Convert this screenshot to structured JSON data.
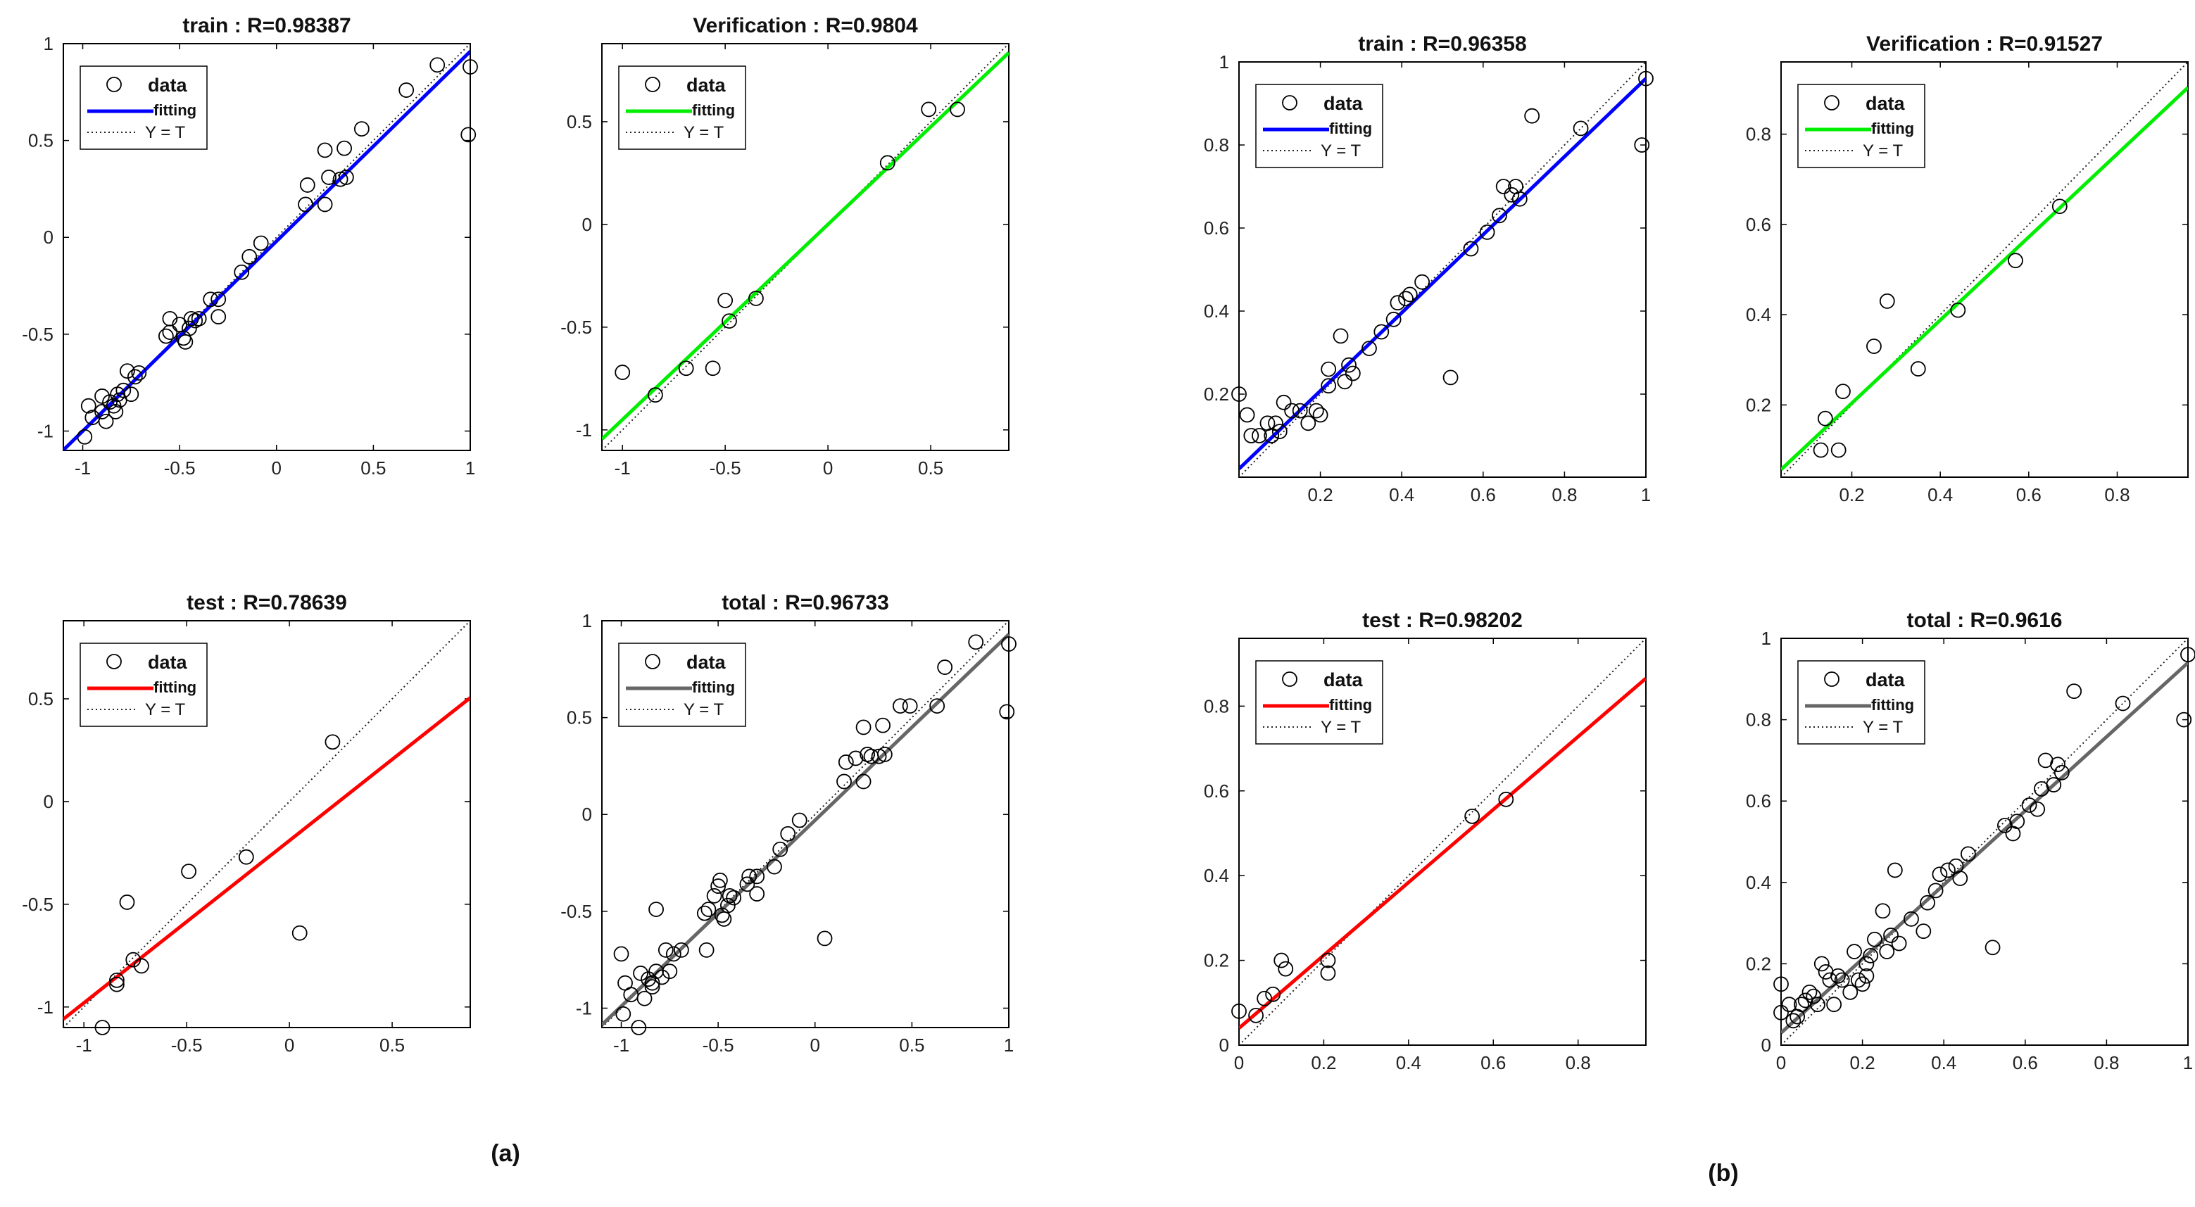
{
  "groups": [
    "(a)",
    "(b)"
  ],
  "legend": {
    "data": "data",
    "fitting": "fitting",
    "identity": "Y = T"
  },
  "colors": {
    "train": "#0000ff",
    "verification": "#00ee00",
    "test": "#ff0000",
    "total": "#666666",
    "axis": "#000000",
    "marker": "#000000"
  },
  "chart_data": [
    {
      "id": "a-train",
      "group": "(a)",
      "type": "scatter",
      "title": "train",
      "r_label": ": R=0.98387",
      "xlim": [
        -1.1,
        1.0
      ],
      "ylim": [
        -1.1,
        1.0
      ],
      "xticks": [
        -1,
        -0.5,
        0,
        0.5,
        1
      ],
      "xtick_labels": [
        "-1",
        "-0.5",
        "0",
        "0.5",
        "1"
      ],
      "yticks": [
        -1,
        -0.5,
        0,
        0.5,
        1
      ],
      "ytick_labels": [
        "-1",
        "-0.5",
        "0",
        "0.5",
        "1"
      ],
      "fit": {
        "slope": 0.98,
        "intercept": -0.02
      },
      "points": [
        [
          -0.99,
          -1.03
        ],
        [
          -0.97,
          -0.87
        ],
        [
          -0.95,
          -0.93
        ],
        [
          -0.9,
          -0.82
        ],
        [
          -0.9,
          -0.9
        ],
        [
          -0.88,
          -0.95
        ],
        [
          -0.86,
          -0.85
        ],
        [
          -0.84,
          -0.87
        ],
        [
          -0.83,
          -0.9
        ],
        [
          -0.82,
          -0.81
        ],
        [
          -0.81,
          -0.84
        ],
        [
          -0.79,
          -0.79
        ],
        [
          -0.77,
          -0.69
        ],
        [
          -0.75,
          -0.81
        ],
        [
          -0.73,
          -0.72
        ],
        [
          -0.71,
          -0.7
        ],
        [
          -0.57,
          -0.51
        ],
        [
          -0.55,
          -0.49
        ],
        [
          -0.55,
          -0.42
        ],
        [
          -0.5,
          -0.45
        ],
        [
          -0.48,
          -0.52
        ],
        [
          -0.47,
          -0.54
        ],
        [
          -0.45,
          -0.47
        ],
        [
          -0.44,
          -0.42
        ],
        [
          -0.42,
          -0.43
        ],
        [
          -0.4,
          -0.42
        ],
        [
          -0.34,
          -0.32
        ],
        [
          -0.3,
          -0.41
        ],
        [
          -0.3,
          -0.32
        ],
        [
          -0.18,
          -0.18
        ],
        [
          -0.14,
          -0.1
        ],
        [
          -0.08,
          -0.03
        ],
        [
          0.15,
          0.17
        ],
        [
          0.16,
          0.27
        ],
        [
          0.25,
          0.17
        ],
        [
          0.25,
          0.45
        ],
        [
          0.27,
          0.31
        ],
        [
          0.33,
          0.3
        ],
        [
          0.35,
          0.46
        ],
        [
          0.36,
          0.31
        ],
        [
          0.44,
          0.56
        ],
        [
          0.67,
          0.76
        ],
        [
          0.83,
          0.89
        ],
        [
          0.99,
          0.53
        ],
        [
          1.0,
          0.88
        ]
      ]
    },
    {
      "id": "a-verification",
      "group": "(a)",
      "type": "scatter",
      "title": "Verification",
      "r_label": ": R=0.9804",
      "xlim": [
        -1.1,
        0.88
      ],
      "ylim": [
        -1.1,
        0.88
      ],
      "xticks": [
        -1,
        -0.5,
        0,
        0.5
      ],
      "xtick_labels": [
        "-1",
        "-0.5",
        "0",
        "0.5"
      ],
      "yticks": [
        -1,
        -0.5,
        0,
        0.5
      ],
      "ytick_labels": [
        "-1",
        "-0.5",
        "0",
        "0.5"
      ],
      "fit": {
        "slope": 0.95,
        "intercept": -0.0
      },
      "points": [
        [
          -1.0,
          -0.72
        ],
        [
          -0.84,
          -0.83
        ],
        [
          -0.69,
          -0.7
        ],
        [
          -0.56,
          -0.7
        ],
        [
          -0.5,
          -0.37
        ],
        [
          -0.48,
          -0.47
        ],
        [
          -0.35,
          -0.36
        ],
        [
          0.29,
          0.3
        ],
        [
          0.49,
          0.56
        ],
        [
          0.63,
          0.56
        ]
      ]
    },
    {
      "id": "a-test",
      "group": "(a)",
      "type": "scatter",
      "title": "test",
      "r_label": ": R=0.78639",
      "xlim": [
        -1.1,
        0.88
      ],
      "ylim": [
        -1.1,
        0.88
      ],
      "xticks": [
        -1,
        -0.5,
        0,
        0.5
      ],
      "xtick_labels": [
        "-1",
        "-0.5",
        "0",
        "0.5"
      ],
      "yticks": [
        -1,
        -0.5,
        0,
        0.5
      ],
      "ytick_labels": [
        "-1",
        "-0.5",
        "0",
        "0.5"
      ],
      "fit": {
        "slope": 0.79,
        "intercept": -0.19
      },
      "points": [
        [
          -0.91,
          -1.1
        ],
        [
          -0.84,
          -0.87
        ],
        [
          -0.84,
          -0.89
        ],
        [
          -0.79,
          -0.49
        ],
        [
          -0.76,
          -0.77
        ],
        [
          -0.72,
          -0.8
        ],
        [
          -0.49,
          -0.34
        ],
        [
          -0.21,
          -0.27
        ],
        [
          0.05,
          -0.64
        ],
        [
          0.21,
          0.29
        ]
      ]
    },
    {
      "id": "a-total",
      "group": "(a)",
      "type": "scatter",
      "title": "total",
      "r_label": ": R=0.96733",
      "xlim": [
        -1.1,
        1.0
      ],
      "ylim": [
        -1.1,
        1.0
      ],
      "xticks": [
        -1,
        -0.5,
        0,
        0.5,
        1
      ],
      "xtick_labels": [
        "-1",
        "-0.5",
        "0",
        "0.5",
        "1"
      ],
      "yticks": [
        -1,
        -0.5,
        0,
        0.5,
        1
      ],
      "ytick_labels": [
        "-1",
        "-0.5",
        "0",
        "0.5",
        "1"
      ],
      "fit": {
        "slope": 0.96,
        "intercept": -0.03
      },
      "points": [
        [
          -1.0,
          -0.72
        ],
        [
          -0.99,
          -1.03
        ],
        [
          -0.98,
          -0.87
        ],
        [
          -0.95,
          -0.93
        ],
        [
          -0.91,
          -1.1
        ],
        [
          -0.9,
          -0.82
        ],
        [
          -0.88,
          -0.95
        ],
        [
          -0.86,
          -0.85
        ],
        [
          -0.84,
          -0.87
        ],
        [
          -0.84,
          -0.89
        ],
        [
          -0.82,
          -0.81
        ],
        [
          -0.82,
          -0.49
        ],
        [
          -0.79,
          -0.84
        ],
        [
          -0.77,
          -0.7
        ],
        [
          -0.75,
          -0.81
        ],
        [
          -0.73,
          -0.72
        ],
        [
          -0.69,
          -0.7
        ],
        [
          -0.57,
          -0.51
        ],
        [
          -0.56,
          -0.7
        ],
        [
          -0.55,
          -0.49
        ],
        [
          -0.52,
          -0.42
        ],
        [
          -0.5,
          -0.37
        ],
        [
          -0.49,
          -0.34
        ],
        [
          -0.48,
          -0.52
        ],
        [
          -0.47,
          -0.54
        ],
        [
          -0.45,
          -0.47
        ],
        [
          -0.44,
          -0.42
        ],
        [
          -0.42,
          -0.43
        ],
        [
          -0.35,
          -0.36
        ],
        [
          -0.34,
          -0.32
        ],
        [
          -0.3,
          -0.41
        ],
        [
          -0.3,
          -0.32
        ],
        [
          -0.21,
          -0.27
        ],
        [
          -0.18,
          -0.18
        ],
        [
          -0.14,
          -0.1
        ],
        [
          -0.08,
          -0.03
        ],
        [
          0.05,
          -0.64
        ],
        [
          0.15,
          0.17
        ],
        [
          0.16,
          0.27
        ],
        [
          0.21,
          0.29
        ],
        [
          0.25,
          0.17
        ],
        [
          0.25,
          0.45
        ],
        [
          0.27,
          0.31
        ],
        [
          0.29,
          0.3
        ],
        [
          0.33,
          0.3
        ],
        [
          0.35,
          0.46
        ],
        [
          0.36,
          0.31
        ],
        [
          0.44,
          0.56
        ],
        [
          0.49,
          0.56
        ],
        [
          0.63,
          0.56
        ],
        [
          0.67,
          0.76
        ],
        [
          0.83,
          0.89
        ],
        [
          0.99,
          0.53
        ],
        [
          1.0,
          0.88
        ]
      ]
    },
    {
      "id": "b-train",
      "group": "(b)",
      "type": "scatter",
      "title": "train",
      "r_label": ": R=0.96358",
      "xlim": [
        0.0,
        1.0
      ],
      "ylim": [
        0.0,
        1.0
      ],
      "xticks": [
        0.2,
        0.4,
        0.6,
        0.8,
        1
      ],
      "xtick_labels": [
        "0.2",
        "0.4",
        "0.6",
        "0.8",
        "1"
      ],
      "yticks": [
        0.2,
        0.4,
        0.6,
        0.8,
        1
      ],
      "ytick_labels": [
        "0.2",
        "0.4",
        "0.6",
        "0.8",
        "1"
      ],
      "fit": {
        "slope": 0.94,
        "intercept": 0.02
      },
      "points": [
        [
          0.0,
          0.2
        ],
        [
          0.02,
          0.15
        ],
        [
          0.03,
          0.1
        ],
        [
          0.05,
          0.1
        ],
        [
          0.07,
          0.13
        ],
        [
          0.08,
          0.1
        ],
        [
          0.09,
          0.13
        ],
        [
          0.1,
          0.11
        ],
        [
          0.11,
          0.18
        ],
        [
          0.13,
          0.16
        ],
        [
          0.15,
          0.16
        ],
        [
          0.17,
          0.13
        ],
        [
          0.19,
          0.16
        ],
        [
          0.2,
          0.15
        ],
        [
          0.22,
          0.22
        ],
        [
          0.22,
          0.26
        ],
        [
          0.25,
          0.34
        ],
        [
          0.26,
          0.23
        ],
        [
          0.27,
          0.27
        ],
        [
          0.28,
          0.25
        ],
        [
          0.32,
          0.31
        ],
        [
          0.35,
          0.35
        ],
        [
          0.38,
          0.38
        ],
        [
          0.39,
          0.42
        ],
        [
          0.41,
          0.43
        ],
        [
          0.42,
          0.44
        ],
        [
          0.45,
          0.47
        ],
        [
          0.52,
          0.24
        ],
        [
          0.57,
          0.55
        ],
        [
          0.61,
          0.59
        ],
        [
          0.64,
          0.63
        ],
        [
          0.65,
          0.7
        ],
        [
          0.67,
          0.68
        ],
        [
          0.68,
          0.7
        ],
        [
          0.69,
          0.67
        ],
        [
          0.72,
          0.87
        ],
        [
          0.84,
          0.84
        ],
        [
          0.99,
          0.8
        ],
        [
          1.0,
          0.96
        ]
      ]
    },
    {
      "id": "b-verification",
      "group": "(b)",
      "type": "scatter",
      "title": "Verification",
      "r_label": ": R=0.91527",
      "xlim": [
        0.04,
        0.96
      ],
      "ylim": [
        0.04,
        0.96
      ],
      "xticks": [
        0.2,
        0.4,
        0.6,
        0.8
      ],
      "xtick_labels": [
        "0.2",
        "0.4",
        "0.6",
        "0.8"
      ],
      "yticks": [
        0.2,
        0.4,
        0.6,
        0.8
      ],
      "ytick_labels": [
        "0.2",
        "0.4",
        "0.6",
        "0.8"
      ],
      "fit": {
        "slope": 0.92,
        "intercept": 0.02
      },
      "points": [
        [
          0.13,
          0.1
        ],
        [
          0.14,
          0.17
        ],
        [
          0.17,
          0.1
        ],
        [
          0.18,
          0.23
        ],
        [
          0.25,
          0.33
        ],
        [
          0.28,
          0.43
        ],
        [
          0.35,
          0.28
        ],
        [
          0.44,
          0.41
        ],
        [
          0.57,
          0.52
        ],
        [
          0.67,
          0.64
        ]
      ]
    },
    {
      "id": "b-test",
      "group": "(b)",
      "type": "scatter",
      "title": "test",
      "r_label": ": R=0.98202",
      "xlim": [
        0.0,
        0.96
      ],
      "ylim": [
        0.0,
        0.96
      ],
      "xticks": [
        0,
        0.2,
        0.4,
        0.6,
        0.8
      ],
      "xtick_labels": [
        "0",
        "0.2",
        "0.4",
        "0.6",
        "0.8"
      ],
      "yticks": [
        0,
        0.2,
        0.4,
        0.6,
        0.8
      ],
      "ytick_labels": [
        "0",
        "0.2",
        "0.4",
        "0.6",
        "0.8"
      ],
      "fit": {
        "slope": 0.86,
        "intercept": 0.04
      },
      "points": [
        [
          0.0,
          0.08
        ],
        [
          0.04,
          0.07
        ],
        [
          0.06,
          0.11
        ],
        [
          0.08,
          0.12
        ],
        [
          0.1,
          0.2
        ],
        [
          0.11,
          0.18
        ],
        [
          0.21,
          0.2
        ],
        [
          0.21,
          0.17
        ],
        [
          0.55,
          0.54
        ],
        [
          0.63,
          0.58
        ]
      ]
    },
    {
      "id": "b-total",
      "group": "(b)",
      "type": "scatter",
      "title": "total",
      "r_label": ": R=0.9616",
      "xlim": [
        0.0,
        1.0
      ],
      "ylim": [
        0.0,
        1.0
      ],
      "xticks": [
        0,
        0.2,
        0.4,
        0.6,
        0.8,
        1
      ],
      "xtick_labels": [
        "0",
        "0.2",
        "0.4",
        "0.6",
        "0.8",
        "1"
      ],
      "yticks": [
        0,
        0.2,
        0.4,
        0.6,
        0.8,
        1
      ],
      "ytick_labels": [
        "0",
        "0.2",
        "0.4",
        "0.6",
        "0.8",
        "1"
      ],
      "fit": {
        "slope": 0.91,
        "intercept": 0.03
      },
      "points": [
        [
          0.0,
          0.08
        ],
        [
          0.0,
          0.15
        ],
        [
          0.02,
          0.1
        ],
        [
          0.03,
          0.06
        ],
        [
          0.04,
          0.07
        ],
        [
          0.05,
          0.1
        ],
        [
          0.06,
          0.11
        ],
        [
          0.07,
          0.13
        ],
        [
          0.08,
          0.12
        ],
        [
          0.09,
          0.1
        ],
        [
          0.1,
          0.2
        ],
        [
          0.11,
          0.18
        ],
        [
          0.12,
          0.16
        ],
        [
          0.13,
          0.1
        ],
        [
          0.14,
          0.17
        ],
        [
          0.15,
          0.16
        ],
        [
          0.17,
          0.13
        ],
        [
          0.18,
          0.23
        ],
        [
          0.19,
          0.16
        ],
        [
          0.2,
          0.15
        ],
        [
          0.21,
          0.2
        ],
        [
          0.21,
          0.17
        ],
        [
          0.22,
          0.22
        ],
        [
          0.23,
          0.26
        ],
        [
          0.25,
          0.33
        ],
        [
          0.26,
          0.23
        ],
        [
          0.27,
          0.27
        ],
        [
          0.28,
          0.43
        ],
        [
          0.29,
          0.25
        ],
        [
          0.32,
          0.31
        ],
        [
          0.35,
          0.28
        ],
        [
          0.36,
          0.35
        ],
        [
          0.38,
          0.38
        ],
        [
          0.39,
          0.42
        ],
        [
          0.41,
          0.43
        ],
        [
          0.43,
          0.44
        ],
        [
          0.44,
          0.41
        ],
        [
          0.46,
          0.47
        ],
        [
          0.52,
          0.24
        ],
        [
          0.55,
          0.54
        ],
        [
          0.57,
          0.52
        ],
        [
          0.58,
          0.55
        ],
        [
          0.61,
          0.59
        ],
        [
          0.63,
          0.58
        ],
        [
          0.64,
          0.63
        ],
        [
          0.65,
          0.7
        ],
        [
          0.67,
          0.64
        ],
        [
          0.68,
          0.69
        ],
        [
          0.69,
          0.67
        ],
        [
          0.72,
          0.87
        ],
        [
          0.84,
          0.84
        ],
        [
          0.99,
          0.8
        ],
        [
          1.0,
          0.96
        ]
      ]
    }
  ]
}
